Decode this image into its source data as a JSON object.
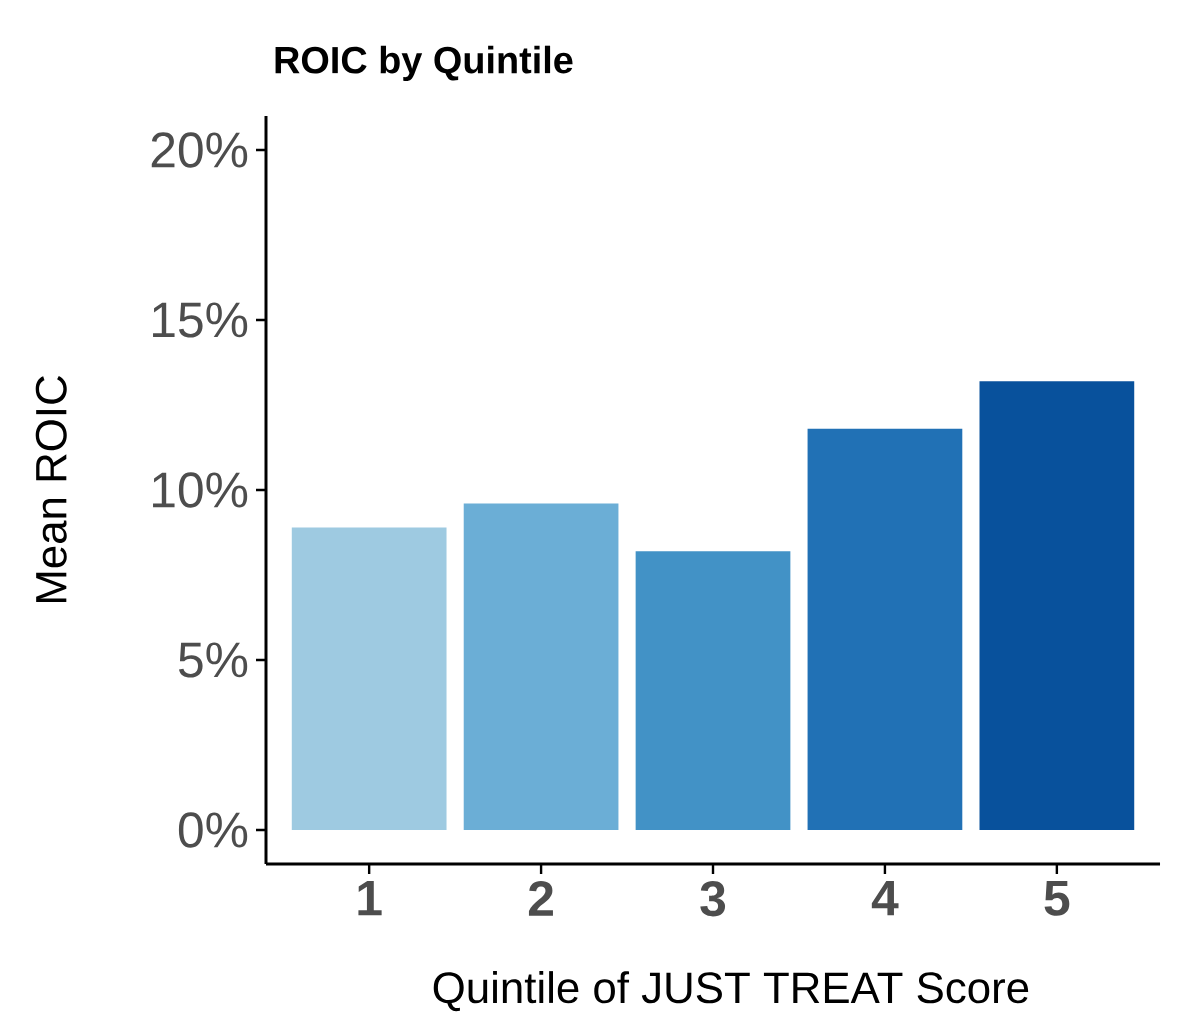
{
  "chart_data": {
    "type": "bar",
    "title": "ROIC by Quintile",
    "xlabel": "Quintile of JUST TREAT Score",
    "ylabel": "Mean ROIC",
    "categories": [
      "1",
      "2",
      "3",
      "4",
      "5"
    ],
    "values": [
      8.9,
      9.6,
      8.2,
      11.8,
      13.2
    ],
    "colors": [
      "#9ecae1",
      "#6baed6",
      "#4292c6",
      "#2171b5",
      "#08519c"
    ],
    "ylim": [
      -1,
      21
    ],
    "yticks": [
      {
        "value": 0,
        "label": "0%"
      },
      {
        "value": 5,
        "label": "5%"
      },
      {
        "value": 10,
        "label": "10%"
      },
      {
        "value": 15,
        "label": "15%"
      },
      {
        "value": 20,
        "label": "20%"
      }
    ],
    "grid": false
  }
}
